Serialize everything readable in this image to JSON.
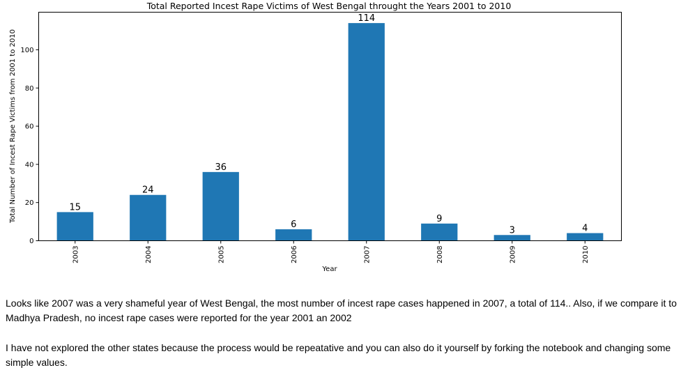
{
  "chart_data": {
    "type": "bar",
    "title": "Total Reported Incest Rape Victims of West Bengal throught the Years 2001 to 2010",
    "xlabel": "Year",
    "ylabel": "Total Number of Incest Rape Victims from 2001 to 2010",
    "categories": [
      "2003",
      "2004",
      "2005",
      "2006",
      "2007",
      "2008",
      "2009",
      "2010"
    ],
    "values": [
      15,
      24,
      36,
      6,
      114,
      9,
      3,
      4
    ],
    "ylim": [
      0,
      119.7
    ],
    "yticks": [
      0,
      20,
      40,
      60,
      80,
      100
    ],
    "bar_color": "#1f77b4",
    "grid": false,
    "legend": "none",
    "data_labels": true
  },
  "text": {
    "paragraph1": "Looks like 2007 was a very shameful year of West Bengal, the most number of incest rape cases happened in 2007, a total of 114.. Also, if we compare it to Madhya Pradesh, no incest rape cases were reported for the year 2001 an 2002",
    "paragraph2": "I have not explored the other states because the process would be repeatative and you can also do it yourself by forking the notebook and changing some simple values."
  }
}
